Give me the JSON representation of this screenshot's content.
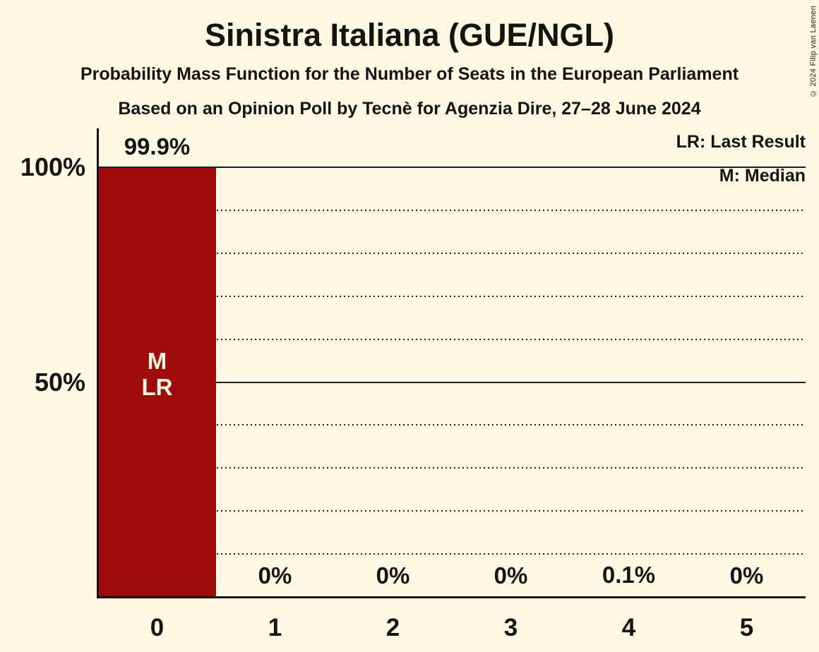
{
  "meta": {
    "copyright": "© 2024 Filip van Laenen"
  },
  "chart_data": {
    "type": "bar",
    "title": "Sinistra Italiana (GUE/NGL)",
    "subtitle": "Probability Mass Function for the Number of Seats in the European Parliament",
    "poll_line": "Based on an Opinion Poll by Tecnè for Agenzia Dire, 27–28 June 2024",
    "categories": [
      "0",
      "1",
      "2",
      "3",
      "4",
      "5"
    ],
    "values": [
      99.9,
      0,
      0,
      0,
      0.1,
      0
    ],
    "value_labels": [
      "99.9%",
      "0%",
      "0%",
      "0%",
      "0.1%",
      "0%"
    ],
    "xlabel": "",
    "ylabel": "",
    "ylim": [
      0,
      100
    ],
    "yticks": [
      {
        "pct": 100,
        "label": "100%"
      },
      {
        "pct": 50,
        "label": "50%"
      }
    ],
    "grid_pcts": [
      10,
      20,
      30,
      40,
      60,
      70,
      80,
      90
    ],
    "solid_pcts": [
      50,
      100
    ],
    "grid_on": true,
    "legend_position": "top-right",
    "legend_entries": [
      "LR: Last Result",
      "M: Median"
    ],
    "median_marker": {
      "category": "0",
      "lines": [
        "M",
        "LR"
      ]
    },
    "colors": {
      "bar": "#A00B0B",
      "background": "#FCF8E1",
      "bar_label": "#FCF8E1",
      "text": "#141414",
      "axis": "#111111"
    }
  }
}
